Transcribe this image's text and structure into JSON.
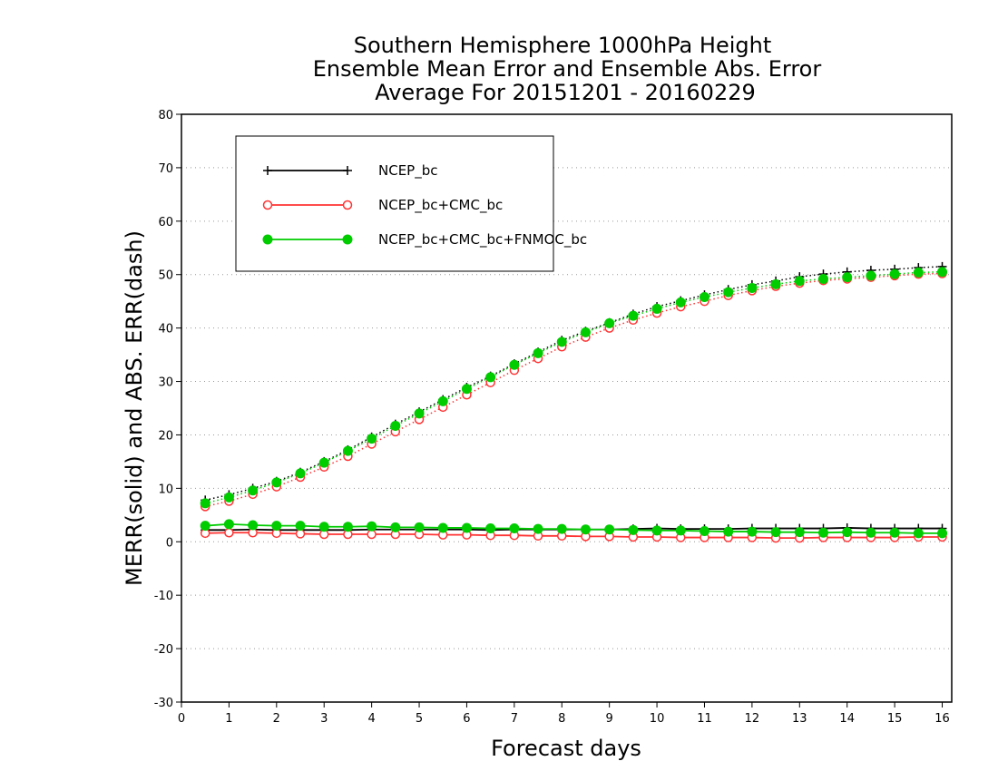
{
  "chart_data": {
    "type": "line",
    "title": [
      "Southern Hemisphere 1000hPa Height",
      "Ensemble Mean Error and Ensemble Abs. Error",
      "Average For 20151201 - 20160229"
    ],
    "xlabel": "Forecast days",
    "ylabel": "MERR(solid) and ABS. ERR(dash)",
    "xlim": [
      0,
      16.2
    ],
    "ylim": [
      -30,
      80
    ],
    "xticks": [
      0,
      1,
      2,
      3,
      4,
      5,
      6,
      7,
      8,
      9,
      10,
      11,
      12,
      13,
      14,
      15,
      16
    ],
    "yticks": [
      -30,
      -20,
      -10,
      0,
      10,
      20,
      30,
      40,
      50,
      60,
      70,
      80
    ],
    "grid": "dotted horizontal",
    "legend_position": "top-left",
    "x": [
      0.5,
      1,
      1.5,
      2,
      2.5,
      3,
      3.5,
      4,
      4.5,
      5,
      5.5,
      6,
      6.5,
      7,
      7.5,
      8,
      8.5,
      9,
      9.5,
      10,
      10.5,
      11,
      11.5,
      12,
      12.5,
      13,
      13.5,
      14,
      14.5,
      15,
      15.5,
      16
    ],
    "series": [
      {
        "name": "NCEP_bc",
        "color": "#000000",
        "marker": "plus",
        "merr": [
          2.2,
          2.2,
          2.3,
          2.2,
          2.2,
          2.2,
          2.2,
          2.3,
          2.3,
          2.3,
          2.3,
          2.3,
          2.2,
          2.3,
          2.3,
          2.3,
          2.3,
          2.3,
          2.4,
          2.5,
          2.4,
          2.4,
          2.4,
          2.5,
          2.5,
          2.5,
          2.5,
          2.6,
          2.5,
          2.5,
          2.5,
          2.5
        ],
        "abs_err": [
          7.8,
          8.8,
          10.0,
          11.3,
          13.0,
          15.0,
          17.2,
          19.6,
          22.0,
          24.3,
          26.6,
          28.9,
          31.0,
          33.3,
          35.5,
          37.7,
          39.4,
          41.0,
          42.6,
          44.0,
          45.1,
          46.2,
          47.2,
          48.1,
          48.8,
          49.6,
          50.1,
          50.5,
          50.8,
          51.0,
          51.3,
          51.5
        ]
      },
      {
        "name": "NCEP_bc+CMC_bc",
        "color": "#ff3333",
        "marker": "open-circle",
        "merr": [
          1.6,
          1.7,
          1.7,
          1.6,
          1.5,
          1.4,
          1.4,
          1.4,
          1.4,
          1.4,
          1.3,
          1.3,
          1.2,
          1.2,
          1.1,
          1.1,
          1.0,
          1.0,
          0.9,
          0.9,
          0.8,
          0.8,
          0.8,
          0.8,
          0.7,
          0.7,
          0.8,
          0.8,
          0.8,
          0.8,
          0.9,
          0.9
        ],
        "abs_err": [
          6.6,
          7.6,
          8.9,
          10.3,
          12.1,
          14.0,
          16.0,
          18.3,
          20.6,
          22.9,
          25.2,
          27.5,
          29.8,
          32.1,
          34.3,
          36.5,
          38.3,
          40.0,
          41.5,
          42.8,
          44.0,
          45.0,
          46.1,
          47.0,
          47.8,
          48.4,
          48.9,
          49.2,
          49.5,
          49.8,
          50.1,
          50.2
        ]
      },
      {
        "name": "NCEP_bc+CMC_bc+FNMOC_bc",
        "color": "#00cc00",
        "marker": "filled-circle",
        "merr": [
          3.0,
          3.3,
          3.1,
          3.0,
          3.0,
          2.8,
          2.8,
          2.9,
          2.7,
          2.7,
          2.6,
          2.6,
          2.5,
          2.5,
          2.4,
          2.4,
          2.3,
          2.3,
          2.2,
          2.1,
          2.1,
          2.0,
          1.9,
          1.9,
          1.8,
          1.8,
          1.7,
          1.8,
          1.7,
          1.7,
          1.6,
          1.6
        ],
        "abs_err": [
          7.2,
          8.3,
          9.6,
          11.1,
          12.8,
          14.8,
          17.0,
          19.3,
          21.7,
          24.0,
          26.3,
          28.6,
          30.8,
          33.1,
          35.3,
          37.4,
          39.2,
          40.9,
          42.3,
          43.6,
          44.8,
          45.8,
          46.7,
          47.5,
          48.2,
          48.8,
          49.2,
          49.5,
          49.8,
          50.1,
          50.4,
          50.5
        ]
      }
    ]
  }
}
